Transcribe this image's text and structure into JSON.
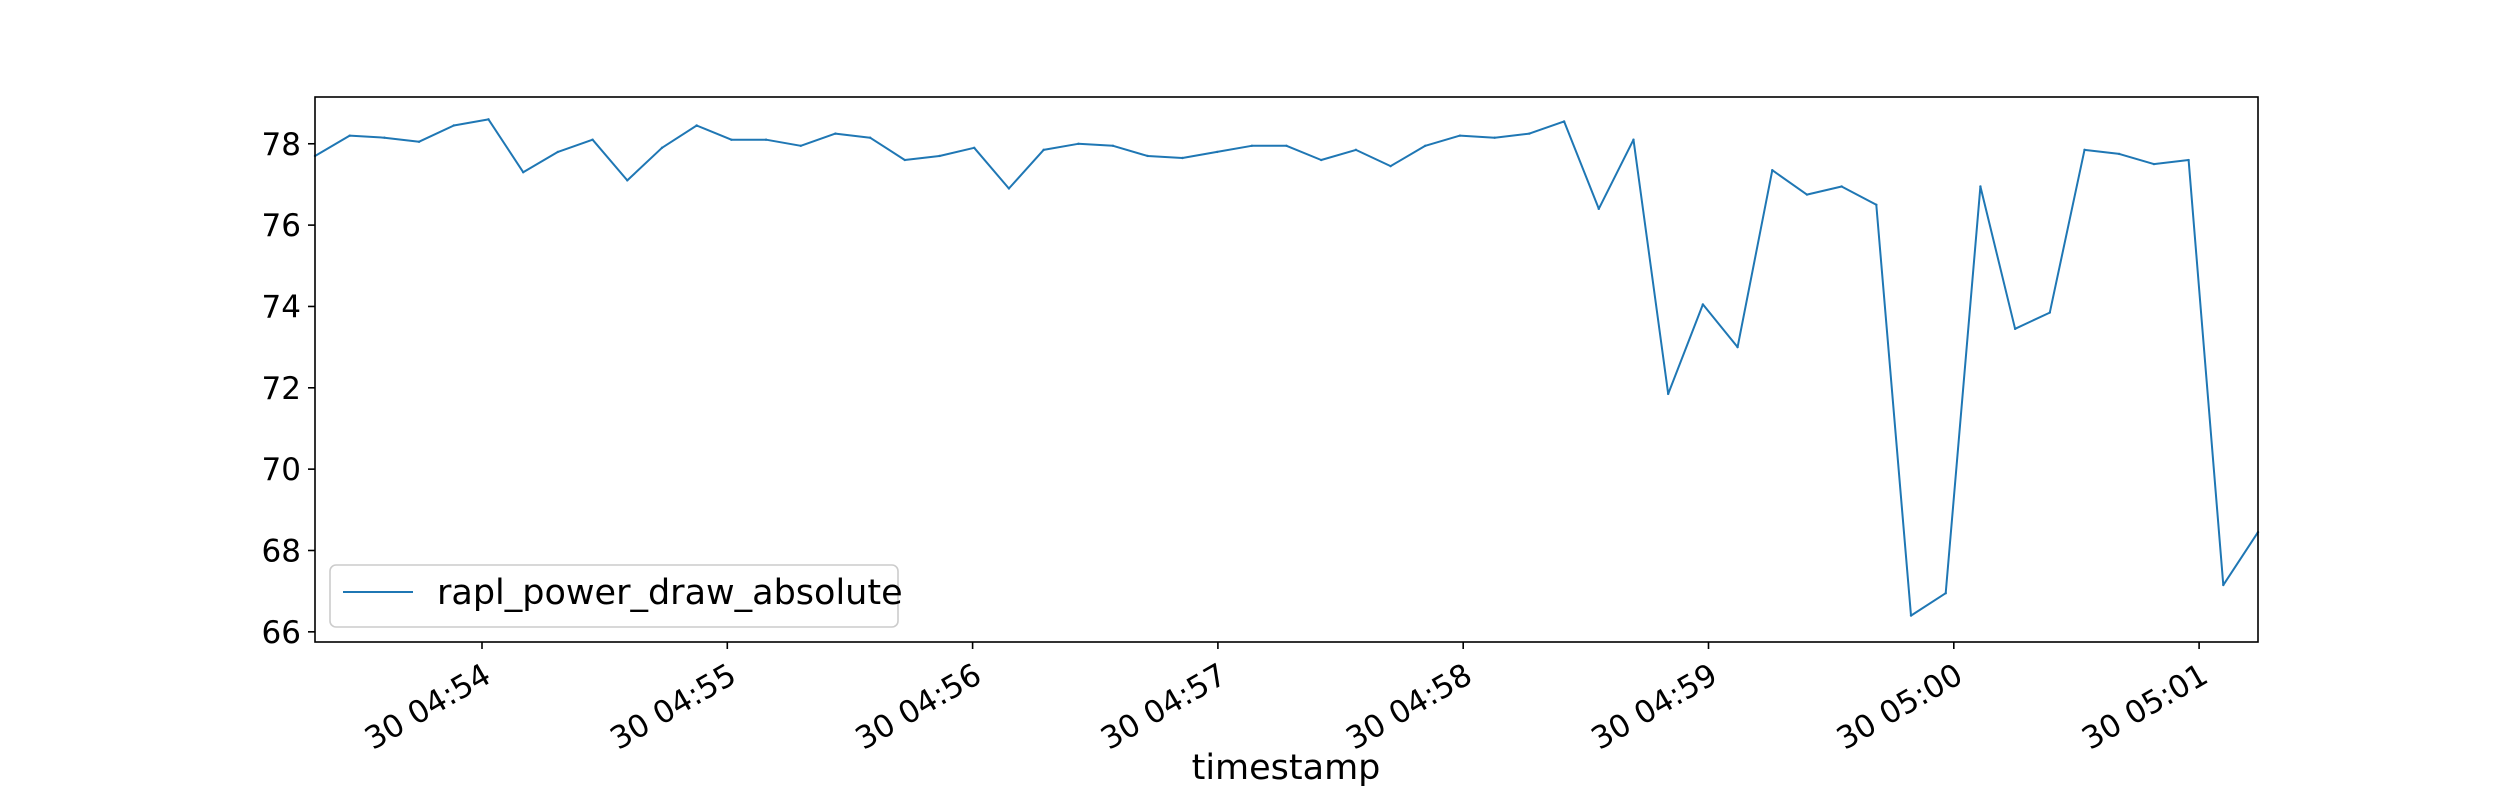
{
  "chart_data": {
    "type": "line",
    "title": "",
    "xlabel": "timestamp",
    "ylabel": "",
    "x_tick_labels": [
      "30 04:54",
      "30 04:55",
      "30 04:56",
      "30 04:57",
      "30 04:58",
      "30 04:59",
      "30 05:00",
      "30 05:01"
    ],
    "y_ticks": [
      66,
      68,
      70,
      72,
      74,
      76,
      78
    ],
    "ylim": [
      65.75,
      79.15
    ],
    "grid": false,
    "legend_position": "lower-left",
    "series": [
      {
        "name": "rapl_power_draw_absolute",
        "color": "#1f77b4",
        "values": [
          77.7,
          78.2,
          78.15,
          78.05,
          78.45,
          78.6,
          77.3,
          77.8,
          78.1,
          77.1,
          77.9,
          78.45,
          78.1,
          78.1,
          77.95,
          78.25,
          78.15,
          77.6,
          77.7,
          77.9,
          76.9,
          77.85,
          78.0,
          77.95,
          77.7,
          77.65,
          77.8,
          77.95,
          77.95,
          77.6,
          77.85,
          77.45,
          77.95,
          78.2,
          78.15,
          78.25,
          78.55,
          76.4,
          78.1,
          71.85,
          74.05,
          73.0,
          77.35,
          76.75,
          76.95,
          76.5,
          66.4,
          66.95,
          76.95,
          73.45,
          73.85,
          77.85,
          77.75,
          77.5,
          77.6,
          67.15,
          68.45
        ]
      }
    ]
  }
}
